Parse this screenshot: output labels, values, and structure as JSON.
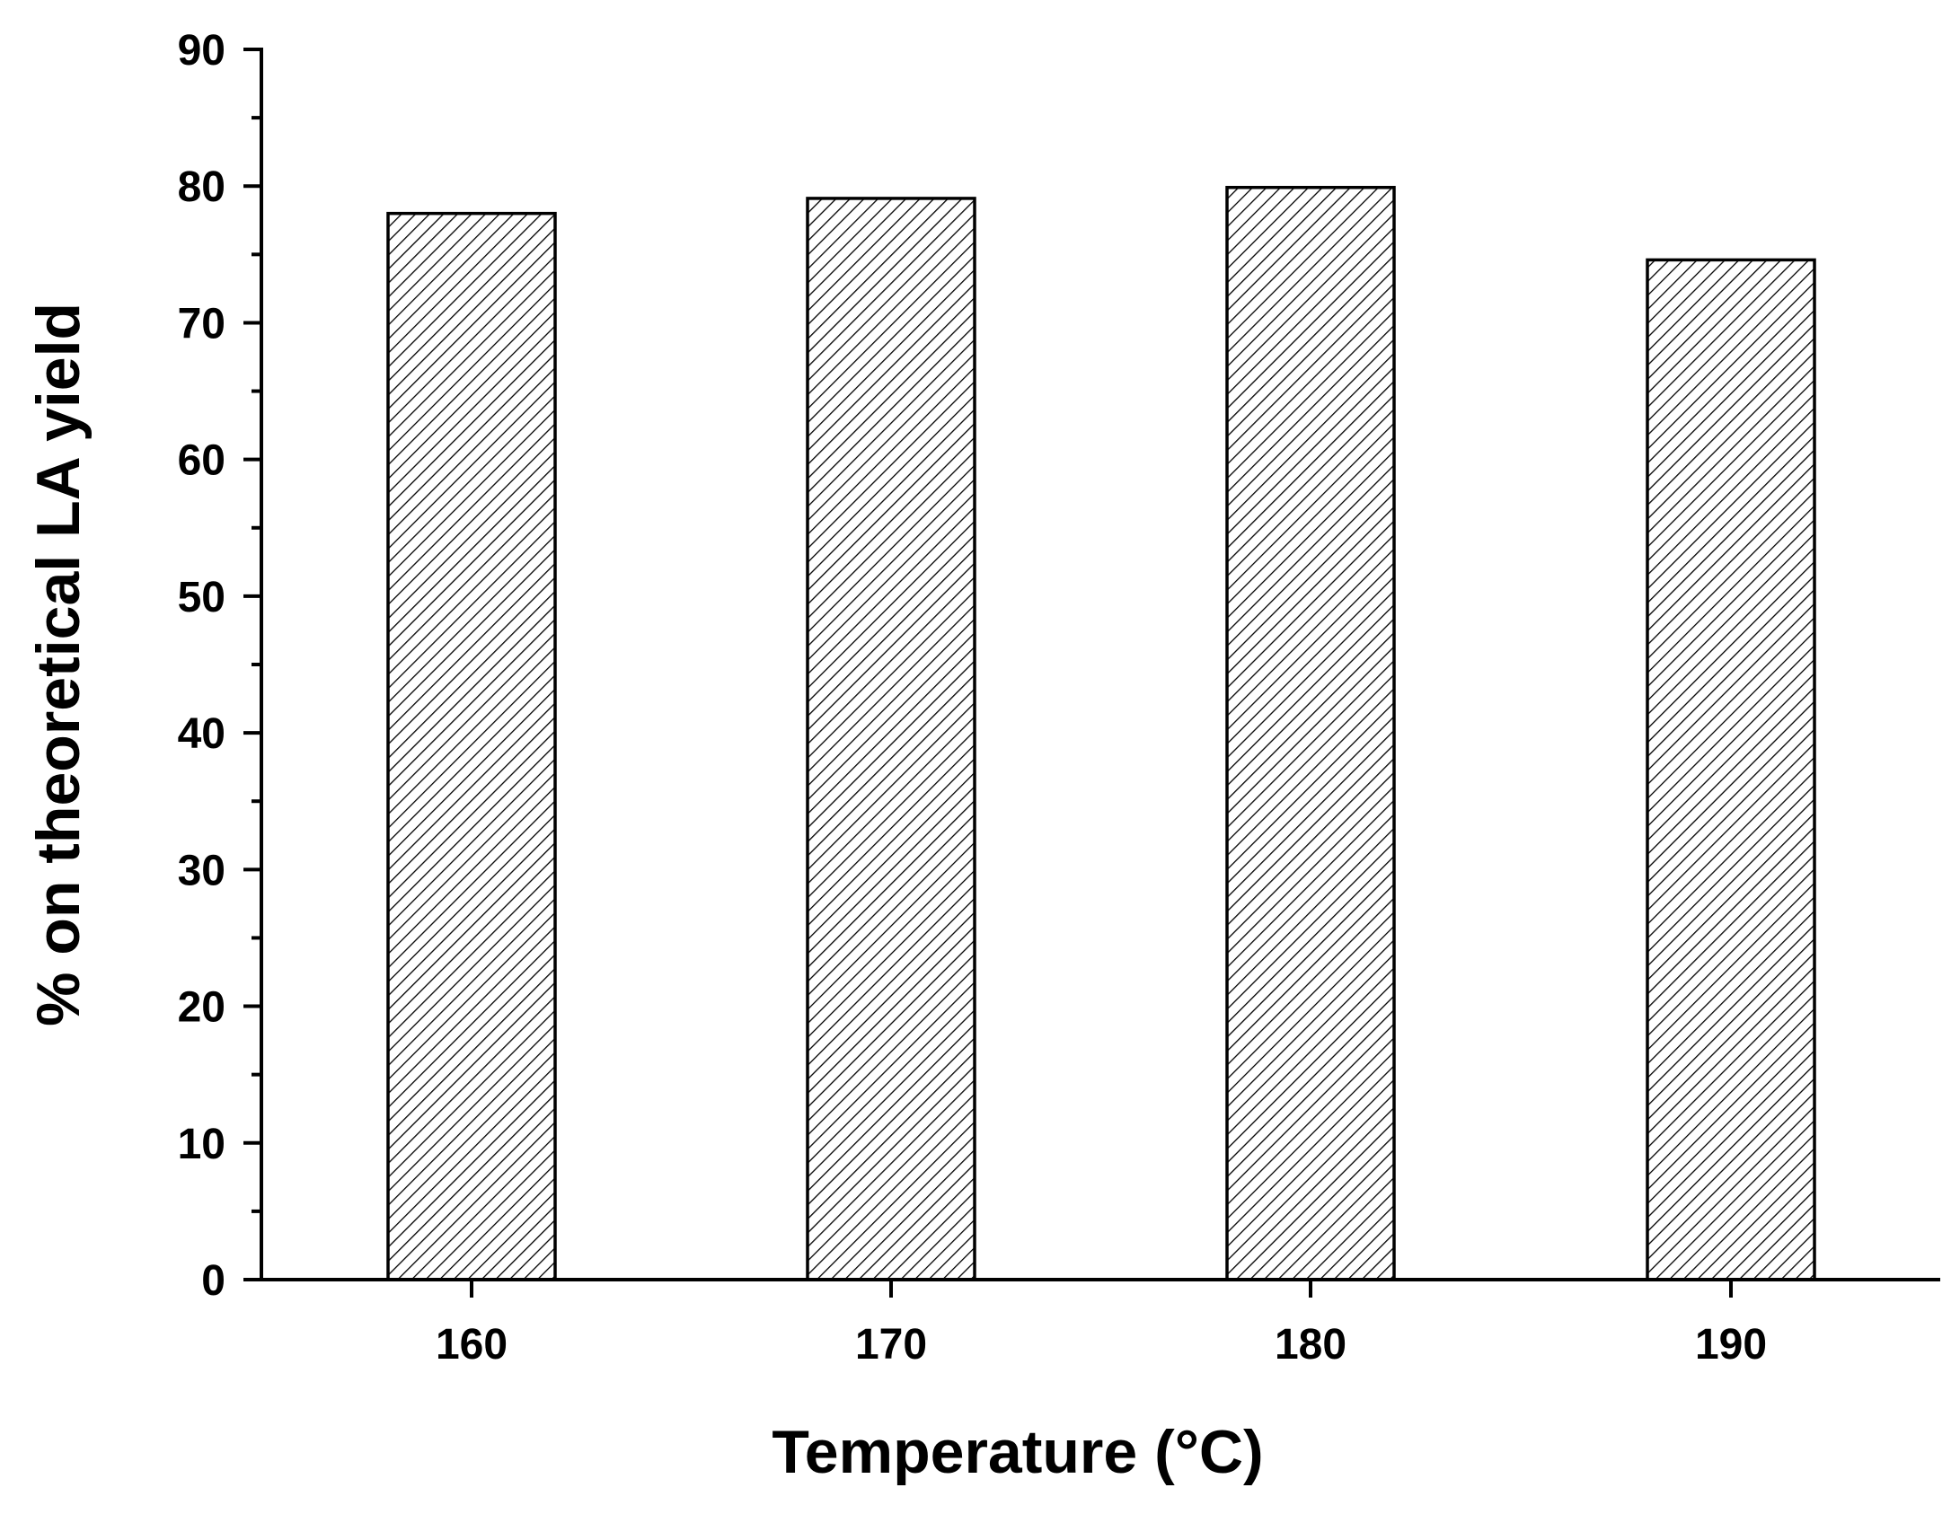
{
  "chart_data": {
    "type": "bar",
    "title": "",
    "xlabel": "Temperature (°C)",
    "ylabel": "% on theoretical LA yield",
    "categories": [
      "160",
      "170",
      "180",
      "190"
    ],
    "values": [
      78.0,
      79.1,
      79.9,
      74.6
    ],
    "ylim": [
      0,
      90
    ],
    "yticks": [
      "0",
      "10",
      "20",
      "30",
      "40",
      "50",
      "60",
      "70",
      "80",
      "90"
    ],
    "ytick_values": [
      0,
      10,
      20,
      30,
      40,
      50,
      60,
      70,
      80,
      90
    ],
    "grid": false,
    "legend": "none",
    "bar_fill": "diagonal hatch",
    "colors": {
      "bar_edge": "#000000",
      "hatch": "#000000",
      "axis": "#000000",
      "background": "#ffffff"
    }
  }
}
